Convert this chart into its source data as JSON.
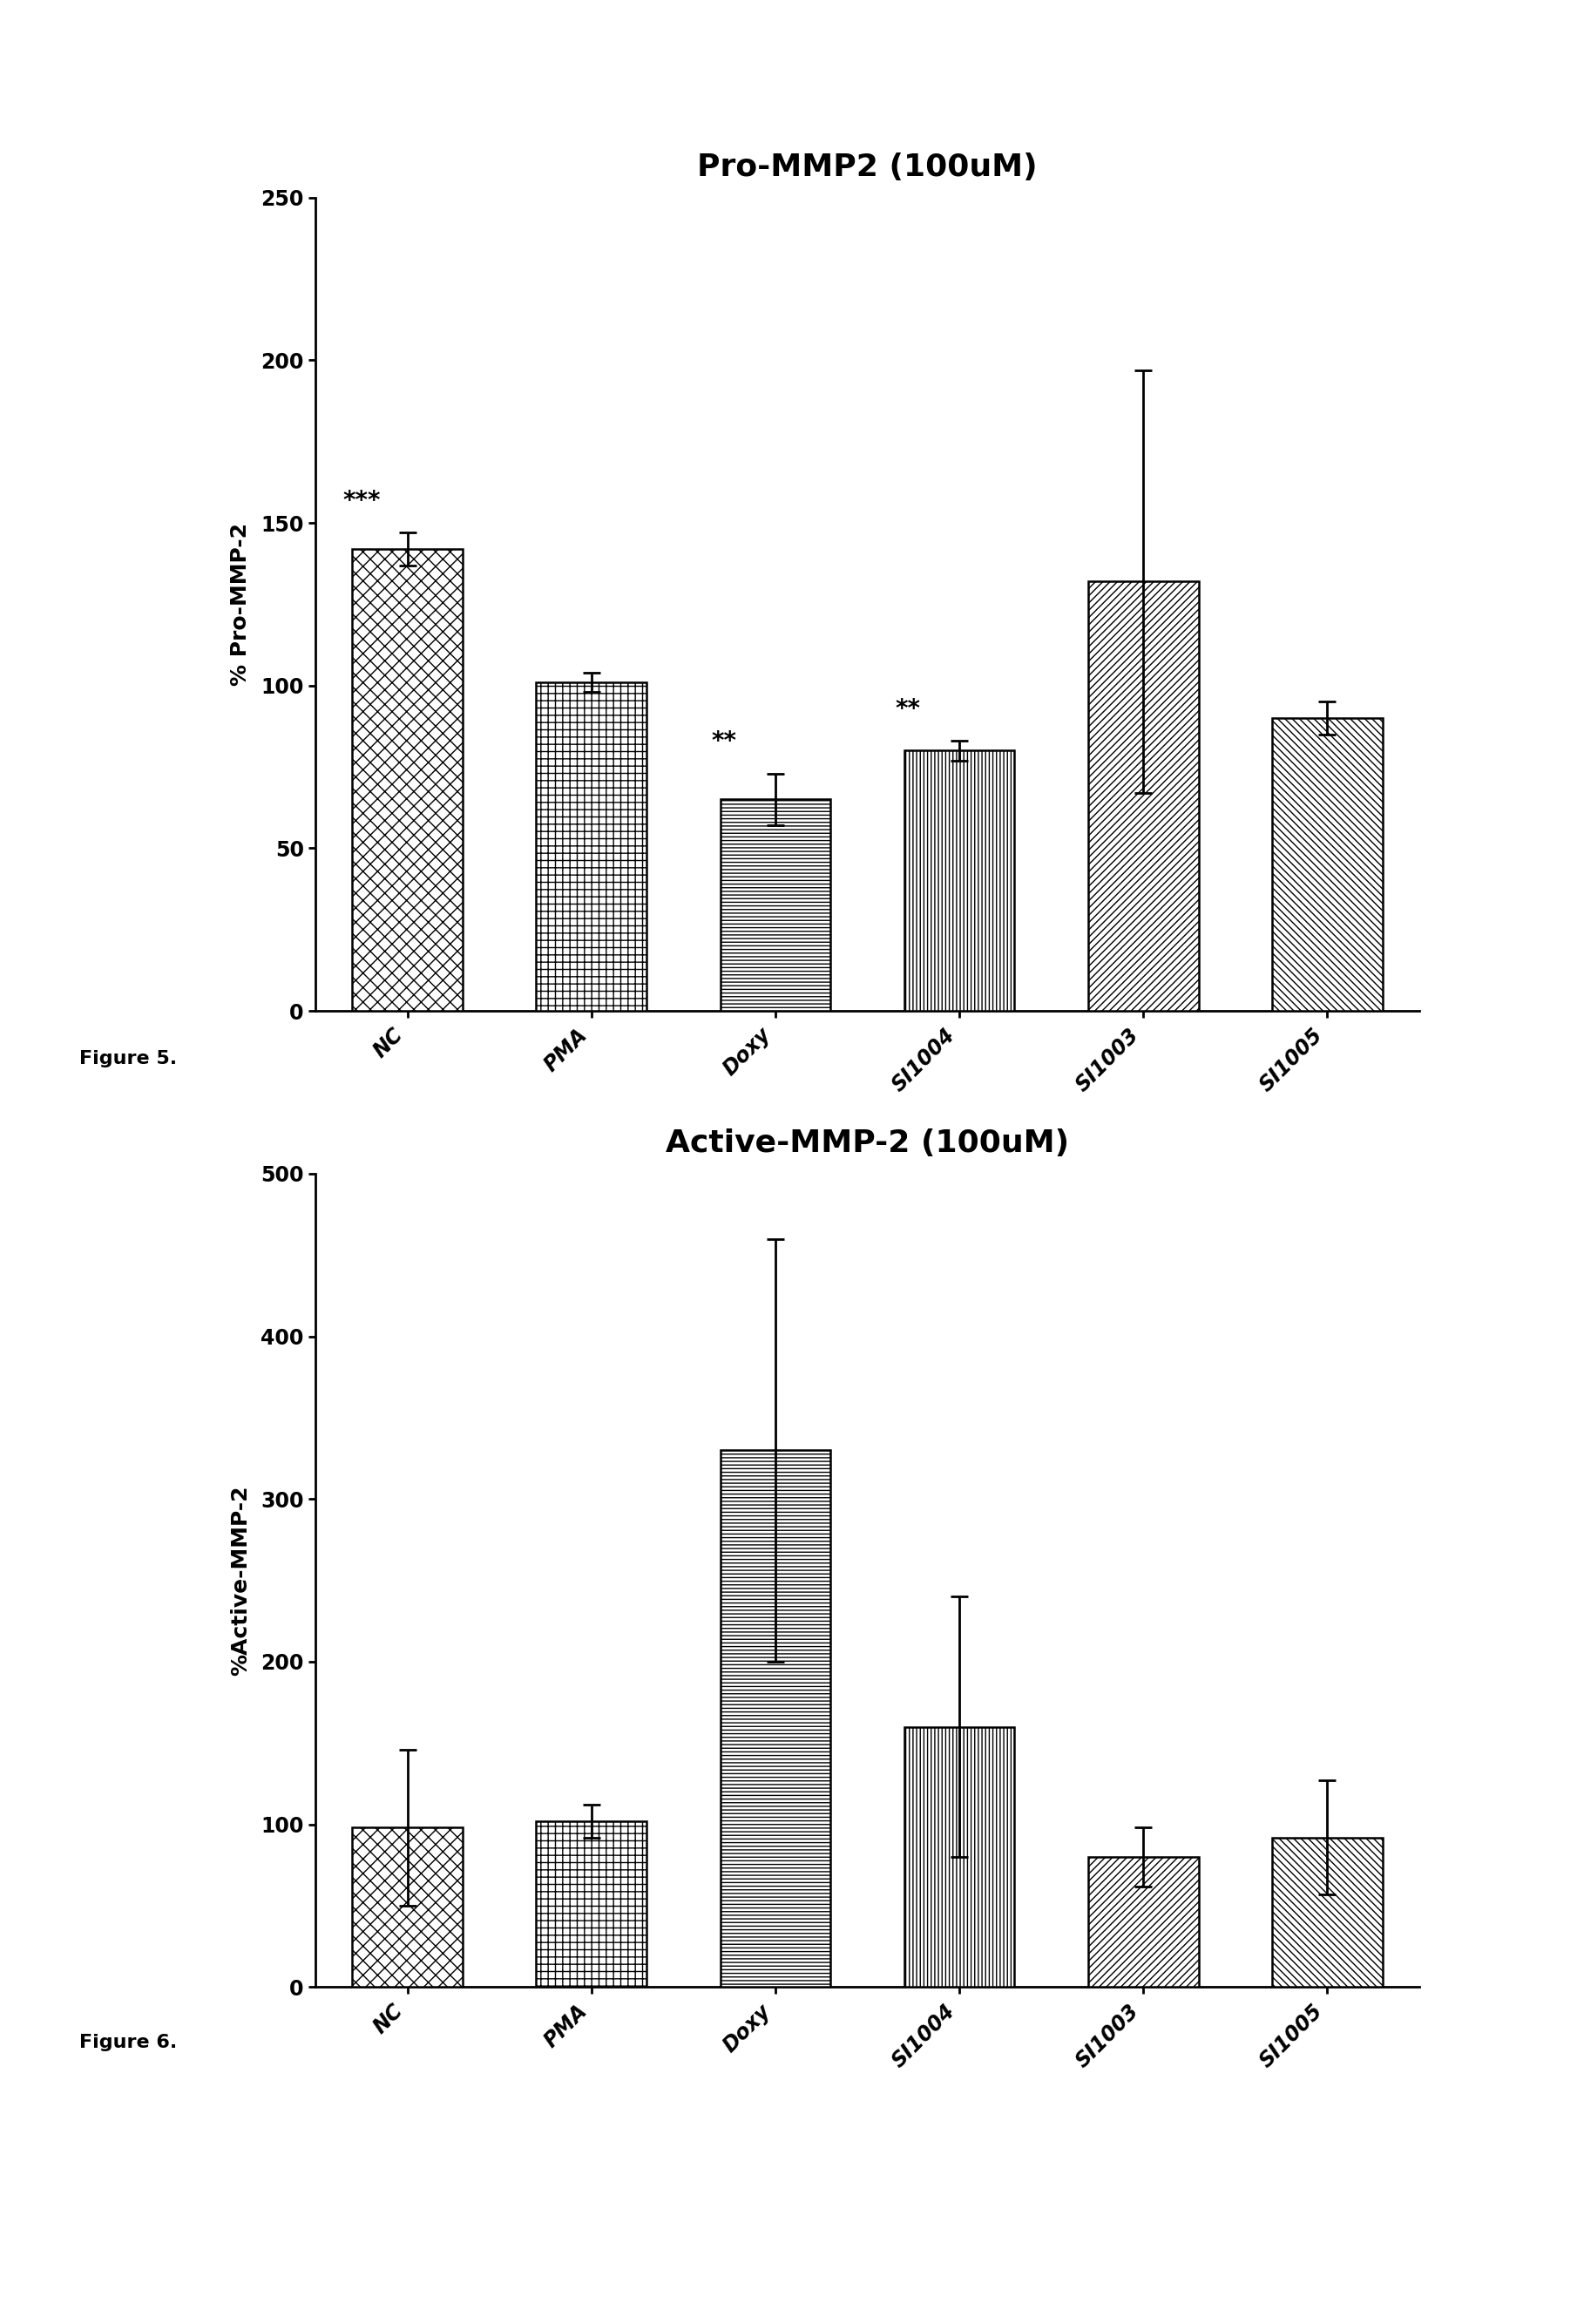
{
  "chart1": {
    "title": "Pro-MMP2 (100uM)",
    "ylabel": "% Pro-MMP-2",
    "categories": [
      "NC",
      "PMA",
      "Doxy",
      "SI1004",
      "SI1003",
      "SI1005"
    ],
    "values": [
      142,
      101,
      65,
      80,
      132,
      90
    ],
    "errors": [
      5,
      3,
      8,
      3,
      65,
      5
    ],
    "ylim": [
      0,
      250
    ],
    "yticks": [
      0,
      50,
      100,
      150,
      200,
      250
    ],
    "annotations": [
      "***",
      "",
      "**",
      "**",
      "",
      ""
    ],
    "figure_label": "Figure 5."
  },
  "chart2": {
    "title": "Active-MMP-2 (100uM)",
    "ylabel": "%Active-MMP-2",
    "categories": [
      "NC",
      "PMA",
      "Doxy",
      "SI1004",
      "SI1003",
      "SI1005"
    ],
    "values": [
      98,
      102,
      330,
      160,
      80,
      92
    ],
    "errors": [
      48,
      10,
      130,
      80,
      18,
      35
    ],
    "ylim": [
      0,
      500
    ],
    "yticks": [
      0,
      100,
      200,
      300,
      400,
      500
    ],
    "annotations": [
      "",
      "",
      "",
      "",
      "",
      ""
    ],
    "figure_label": "Figure 6."
  },
  "bar_width": 0.6,
  "background_color": "#ffffff",
  "bar_edge_color": "#000000",
  "title_fontsize": 26,
  "label_fontsize": 18,
  "tick_fontsize": 17,
  "annotation_fontsize": 20,
  "figure_label_fontsize": 16
}
